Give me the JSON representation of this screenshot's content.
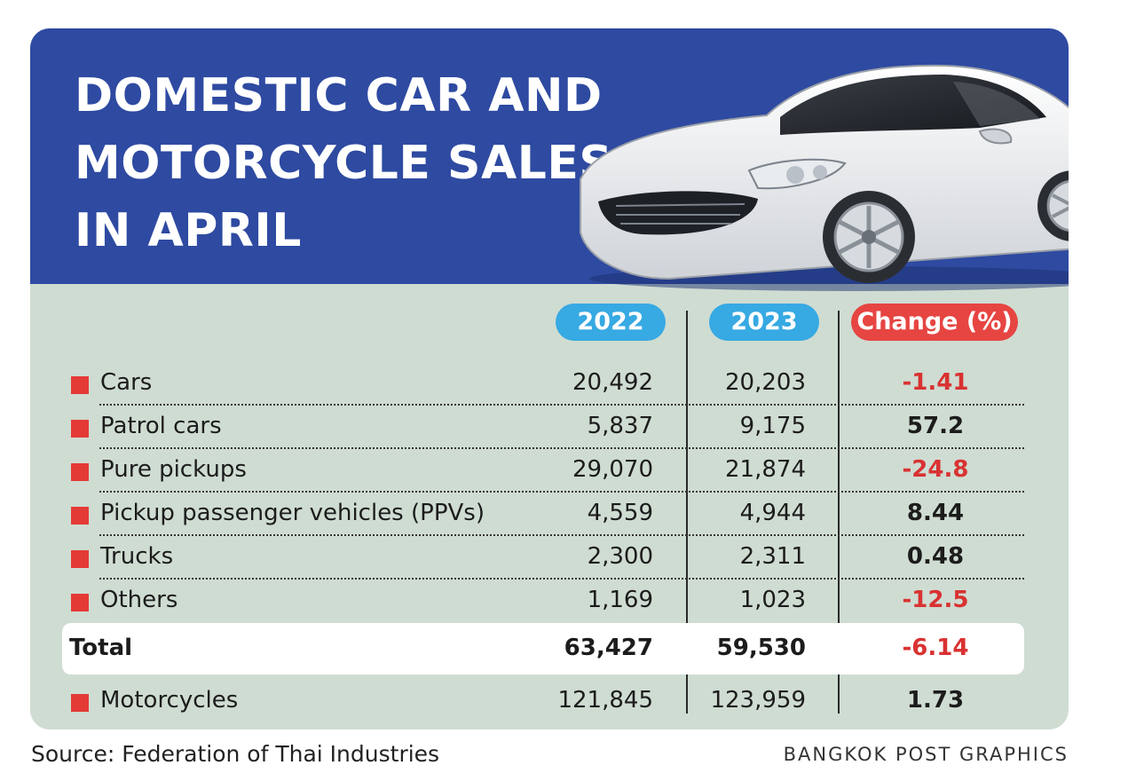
{
  "title_lines": [
    "DOMESTIC CAR AND",
    "MOTORCYCLE SALES",
    "IN APRIL"
  ],
  "chart_data": {
    "type": "table",
    "columns": [
      "2022",
      "2023",
      "Change (%)"
    ],
    "rows": [
      {
        "label": "Cars",
        "v2022": "20,492",
        "v2023": "20,203",
        "change": "-1.41"
      },
      {
        "label": "Patrol cars",
        "v2022": "5,837",
        "v2023": "9,175",
        "change": "57.2"
      },
      {
        "label": "Pure pickups",
        "v2022": "29,070",
        "v2023": "21,874",
        "change": "-24.8"
      },
      {
        "label": "Pickup passenger vehicles (PPVs)",
        "v2022": "4,559",
        "v2023": "4,944",
        "change": "8.44"
      },
      {
        "label": "Trucks",
        "v2022": "2,300",
        "v2023": "2,311",
        "change": "0.48"
      },
      {
        "label": "Others",
        "v2022": "1,169",
        "v2023": "1,023",
        "change": "-12.5"
      }
    ],
    "total": {
      "label": "Total",
      "v2022": "63,427",
      "v2023": "59,530",
      "change": "-6.14"
    },
    "extra": {
      "label": "Motorcycles",
      "v2022": "121,845",
      "v2023": "123,959",
      "change": "1.73"
    }
  },
  "source": "Source: Federation of Thai Industries",
  "credit": "BANGKOK POST GRAPHICS",
  "colors": {
    "header": "#2e4aa1",
    "body": "#cfdcd2",
    "pill_year": "#37a9e3",
    "pill_change": "#e64542",
    "negative": "#d93232",
    "bullet": "#e43a35"
  }
}
